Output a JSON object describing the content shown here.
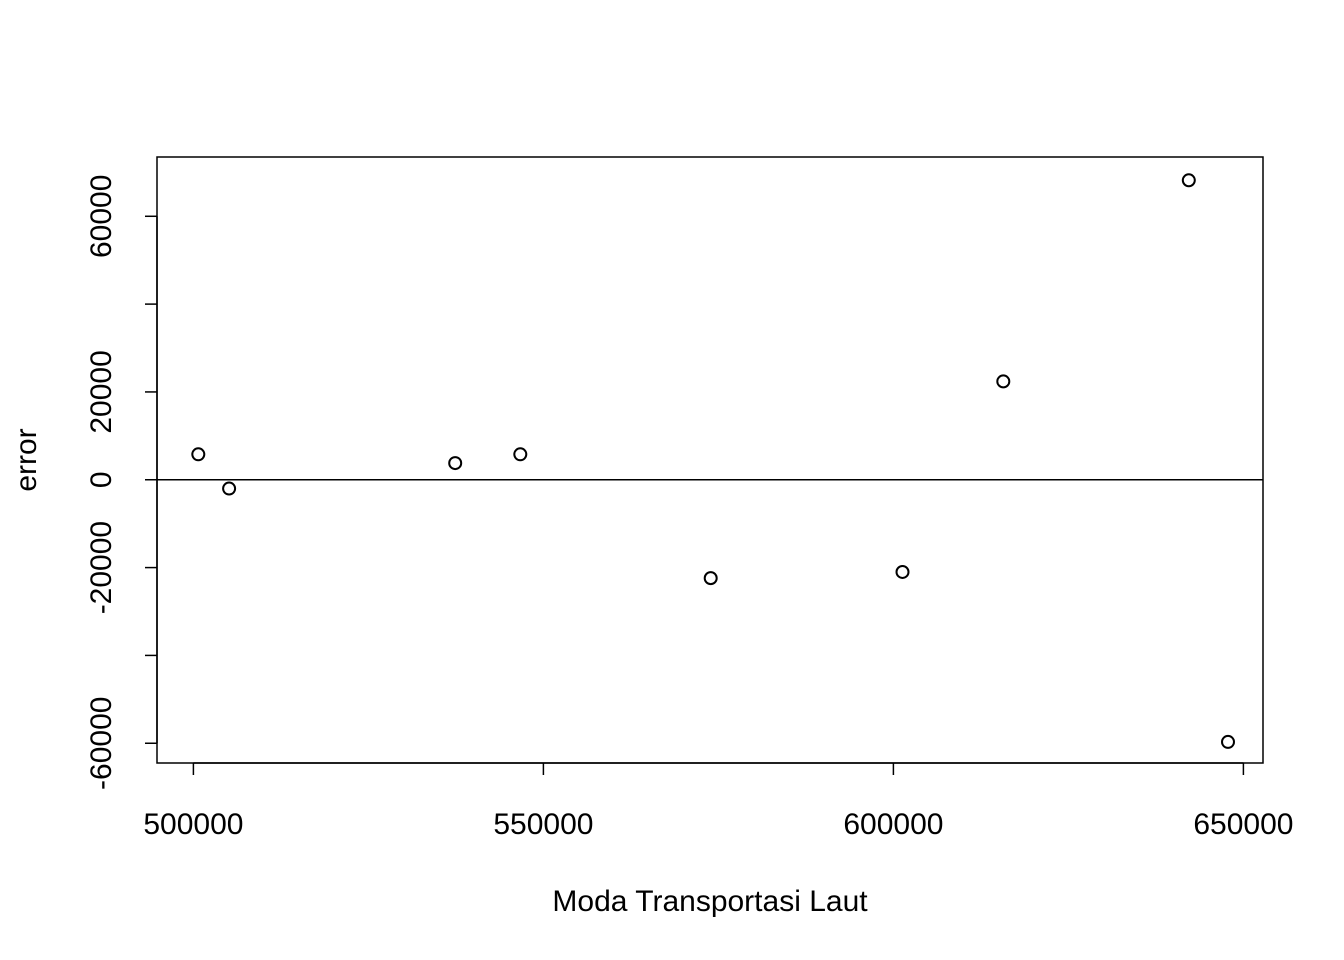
{
  "chart_data": {
    "type": "scatter",
    "title": "",
    "xlabel": "Moda Transportasi Laut",
    "ylabel": "error",
    "xlim": [
      494800,
      652800
    ],
    "ylim": [
      -64500,
      73500
    ],
    "x_ticks": [
      500000,
      550000,
      600000,
      650000
    ],
    "x_tick_labels": [
      "500000",
      "550000",
      "600000",
      "650000"
    ],
    "y_ticks": [
      -60000,
      -40000,
      -20000,
      0,
      20000,
      40000,
      60000
    ],
    "y_tick_labels": [
      "-60000",
      "",
      "-20000",
      "0",
      "20000",
      "",
      "60000"
    ],
    "reference_line_y": 0,
    "grid": false,
    "legend": "none",
    "marker": "open-circle",
    "points": [
      {
        "x": 500700,
        "y": 5800
      },
      {
        "x": 505100,
        "y": -2000
      },
      {
        "x": 537400,
        "y": 3800
      },
      {
        "x": 546700,
        "y": 5800
      },
      {
        "x": 573900,
        "y": -22400
      },
      {
        "x": 601300,
        "y": -21000
      },
      {
        "x": 615700,
        "y": 22400
      },
      {
        "x": 642200,
        "y": 68200
      },
      {
        "x": 647800,
        "y": -59700
      }
    ]
  }
}
